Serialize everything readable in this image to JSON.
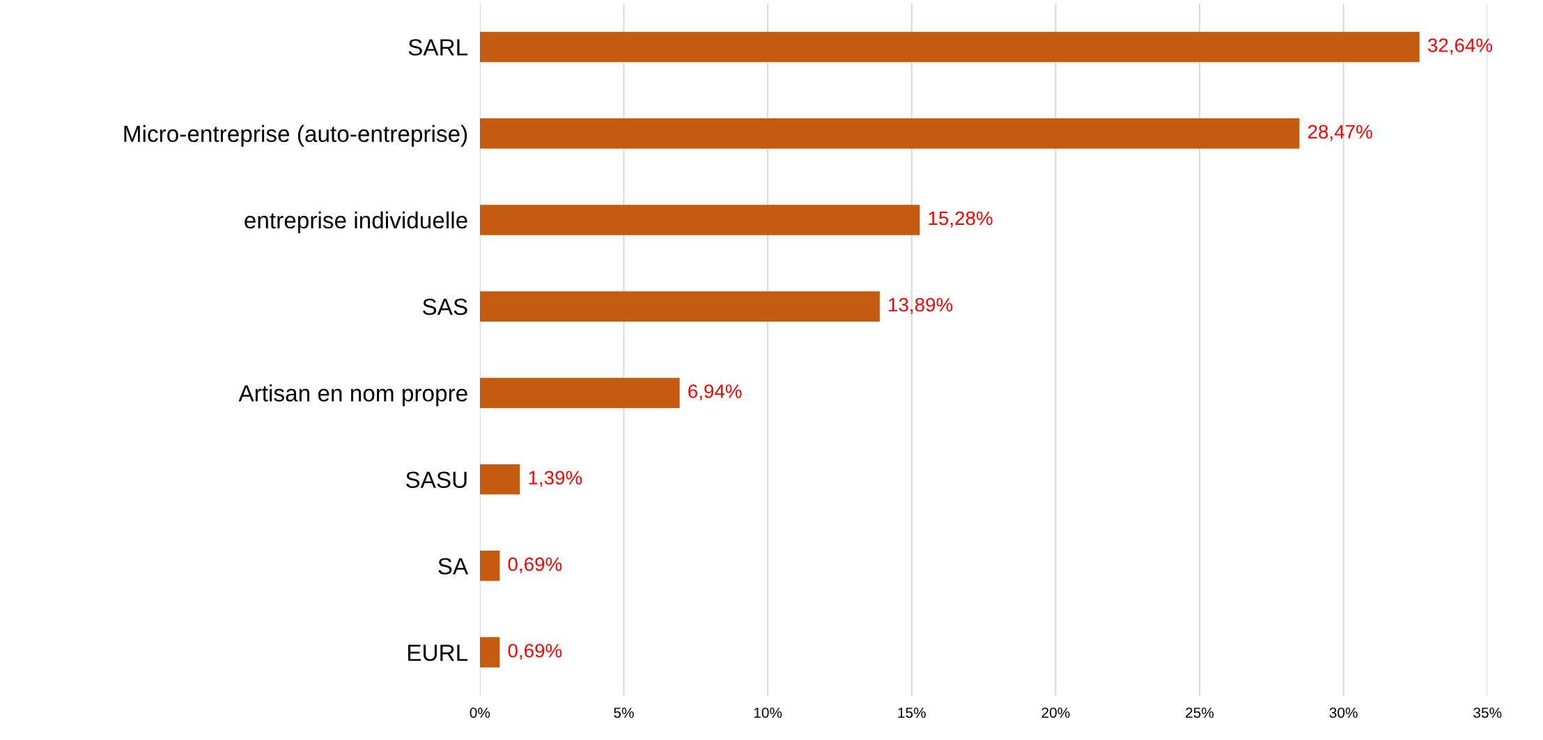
{
  "chart_data": {
    "type": "bar",
    "orientation": "horizontal",
    "categories": [
      "SARL",
      "Micro-entreprise (auto-entreprise)",
      "entreprise individuelle",
      "SAS",
      "Artisan en nom propre",
      "SASU",
      "SA",
      "EURL"
    ],
    "values": [
      32.64,
      28.47,
      15.28,
      13.89,
      6.94,
      1.39,
      0.69,
      0.69
    ],
    "value_labels": [
      "32,64%",
      "28,47%",
      "15,28%",
      "13,89%",
      "6,94%",
      "1,39%",
      "0,69%",
      "0,69%"
    ],
    "color": "#c55a11",
    "xlim": [
      0,
      35
    ],
    "xticks": [
      {
        "value": 0,
        "label": "0%"
      },
      {
        "value": 5,
        "label": "5%"
      },
      {
        "value": 10,
        "label": "10%"
      },
      {
        "value": 15,
        "label": "15%"
      },
      {
        "value": 20,
        "label": "20%"
      },
      {
        "value": 25,
        "label": "25%"
      },
      {
        "value": 30,
        "label": "30%"
      },
      {
        "value": 35,
        "label": "35%"
      }
    ],
    "grid": "x",
    "legend": false
  }
}
